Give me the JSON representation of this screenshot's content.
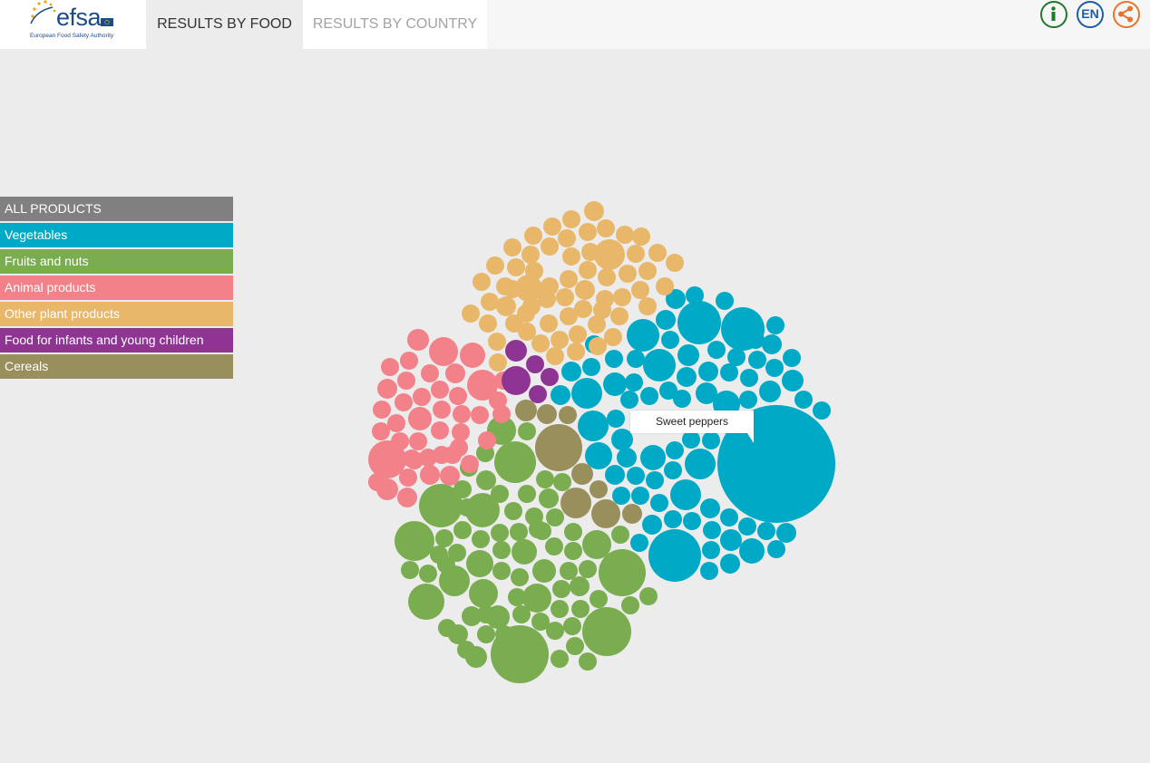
{
  "logo": {
    "word": "efsa",
    "subtitle": "European Food Safety Authority"
  },
  "tabs": [
    {
      "label": "RESULTS BY FOOD",
      "active": true
    },
    {
      "label": "RESULTS BY COUNTRY",
      "active": false
    }
  ],
  "top_icons": {
    "info": "info-icon",
    "language": "EN",
    "share": "share-icon"
  },
  "colors": {
    "all_products": "#808080",
    "vegetables": "#00a9c5",
    "fruits_and_nuts": "#7aac50",
    "animal_products": "#f28189",
    "other_plant_products": "#e8b76a",
    "food_for_infants": "#8e3593",
    "cereals": "#998f5d"
  },
  "legend": [
    {
      "label": "ALL PRODUCTS",
      "key": "all_products"
    },
    {
      "label": "Vegetables",
      "key": "vegetables"
    },
    {
      "label": "Fruits and nuts",
      "key": "fruits_and_nuts"
    },
    {
      "label": "Animal products",
      "key": "animal_products"
    },
    {
      "label": "Other plant products",
      "key": "other_plant_products"
    },
    {
      "label": "Food for infants and young children",
      "key": "food_for_infants"
    },
    {
      "label": "Cereals",
      "key": "cereals"
    }
  ],
  "tooltip": {
    "label": "Sweet peppers"
  }
}
